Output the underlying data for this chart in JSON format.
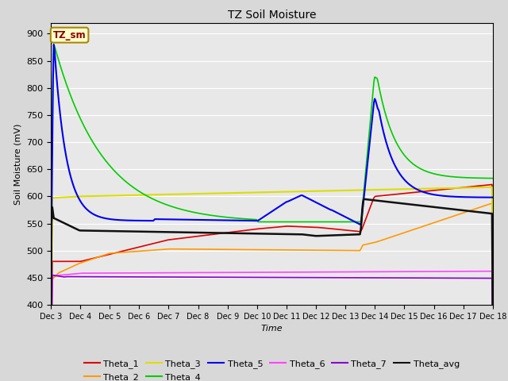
{
  "title": "TZ Soil Moisture",
  "xlabel": "Time",
  "ylabel": "Soil Moisture (mV)",
  "ylim": [
    400,
    920
  ],
  "yticks": [
    400,
    450,
    500,
    550,
    600,
    650,
    700,
    750,
    800,
    850,
    900
  ],
  "legend_label": "TZ_sm",
  "series_colors": {
    "Theta_1": "#dd0000",
    "Theta_2": "#ff9900",
    "Theta_3": "#dddd00",
    "Theta_4": "#00cc00",
    "Theta_5": "#0000ee",
    "Theta_6": "#ff44ff",
    "Theta_7": "#8800cc",
    "Theta_avg": "#111111"
  },
  "n_points": 600
}
